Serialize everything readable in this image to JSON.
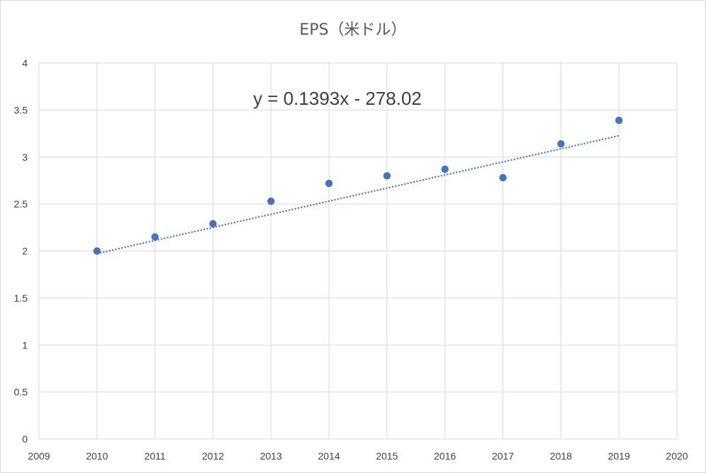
{
  "chart_data": {
    "type": "scatter",
    "title": "EPS（米ドル）",
    "xlabel": "",
    "ylabel": "",
    "xlim": [
      2009,
      2020
    ],
    "ylim": [
      0,
      4
    ],
    "x_ticks": [
      2009,
      2010,
      2011,
      2012,
      2013,
      2014,
      2015,
      2016,
      2017,
      2018,
      2019,
      2020
    ],
    "y_ticks": [
      0,
      0.5,
      1,
      1.5,
      2,
      2.5,
      3,
      3.5,
      4
    ],
    "y_tick_labels": [
      "0",
      "0.5",
      "1",
      "1.5",
      "2",
      "2.5",
      "3",
      "3.5",
      "4"
    ],
    "grid": true,
    "series": [
      {
        "x": [
          2010,
          2011,
          2012,
          2013,
          2014,
          2015,
          2016,
          2017,
          2018,
          2019
        ],
        "y": [
          2.0,
          2.15,
          2.29,
          2.53,
          2.72,
          2.8,
          2.87,
          2.78,
          3.14,
          3.39
        ],
        "color": "#4472c4"
      }
    ],
    "trendline": {
      "type": "linear",
      "slope": 0.1393,
      "intercept": -278.02,
      "x_range": [
        2010,
        2019
      ],
      "style": "dotted",
      "color": "#4472c4",
      "equation": "y = 0.1393x - 278.02"
    }
  }
}
